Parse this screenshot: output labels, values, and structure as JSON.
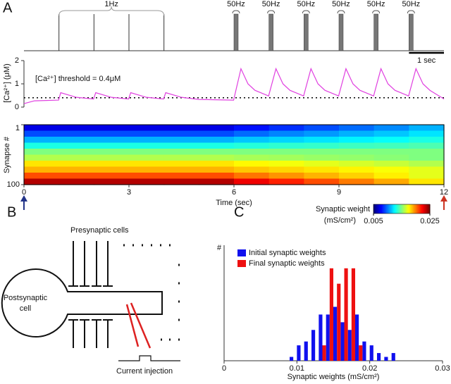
{
  "panel_labels": {
    "a": "A",
    "b": "B",
    "c": "C"
  },
  "chart_data": [
    {
      "type": "spikes",
      "xlim": [
        0,
        12
      ],
      "single_spikes": [
        1,
        2,
        3,
        4
      ],
      "single_label": "1Hz",
      "bursts": [
        6,
        7,
        8,
        9,
        10,
        11
      ],
      "burst_duration": 0.12,
      "burst_labels": [
        "50Hz",
        "50Hz",
        "50Hz",
        "50Hz",
        "50Hz",
        "50Hz"
      ],
      "scale_bar": {
        "length": 1,
        "label": "1 sec"
      }
    },
    {
      "type": "line",
      "ylabel": "[Ca²⁺] (μM)",
      "annotation": "[Ca²⁺] threshold = 0.4μM",
      "threshold": 0.4,
      "color": "#e040e0",
      "xlim": [
        0,
        12
      ],
      "ylim": [
        0,
        2
      ],
      "yticks": [
        0,
        1,
        2
      ],
      "x": [
        0,
        0.3,
        0.99,
        1.05,
        1.5,
        1.99,
        2.05,
        2.5,
        2.99,
        3.05,
        3.5,
        3.99,
        4.05,
        4.5,
        5,
        5.99,
        6.2,
        6.4,
        6.6,
        6.99,
        7.2,
        7.4,
        7.6,
        7.99,
        8.2,
        8.4,
        8.6,
        8.99,
        9.2,
        9.4,
        9.6,
        9.99,
        10.2,
        10.4,
        10.6,
        10.99,
        11.2,
        11.4,
        11.6,
        12
      ],
      "values": [
        0.15,
        0.27,
        0.3,
        0.62,
        0.42,
        0.35,
        0.62,
        0.42,
        0.35,
        0.62,
        0.42,
        0.35,
        0.62,
        0.42,
        0.33,
        0.3,
        1.65,
        1.0,
        0.72,
        0.48,
        1.65,
        1.0,
        0.72,
        0.48,
        1.65,
        1.0,
        0.72,
        0.48,
        1.65,
        1.0,
        0.72,
        0.48,
        1.65,
        1.0,
        0.72,
        0.48,
        1.65,
        1.0,
        0.72,
        0.35
      ]
    },
    {
      "type": "heatmap",
      "ylabel": "Synapse #",
      "xlabel": "Time (sec)",
      "xlim": [
        0,
        12
      ],
      "xticks": [
        0,
        3,
        6,
        9,
        12
      ],
      "ylim": [
        1,
        100
      ],
      "yticks": [
        1,
        100
      ],
      "values": [
        [
          0.007,
          0.007,
          0.007,
          0.007,
          0.007,
          0.007,
          0.0078,
          0.0084,
          0.009,
          0.0096,
          0.0102,
          0.011
        ],
        [
          0.009,
          0.009,
          0.009,
          0.009,
          0.009,
          0.009,
          0.0096,
          0.0101,
          0.0105,
          0.011,
          0.0114,
          0.012
        ],
        [
          0.011,
          0.011,
          0.011,
          0.011,
          0.011,
          0.011,
          0.0114,
          0.0117,
          0.012,
          0.0123,
          0.0126,
          0.013
        ],
        [
          0.013,
          0.013,
          0.013,
          0.013,
          0.013,
          0.013,
          0.0132,
          0.0134,
          0.0135,
          0.0137,
          0.0138,
          0.014
        ],
        [
          0.015,
          0.015,
          0.015,
          0.015,
          0.015,
          0.015,
          0.015,
          0.015,
          0.015,
          0.015,
          0.015,
          0.015
        ],
        [
          0.016,
          0.016,
          0.016,
          0.016,
          0.016,
          0.016,
          0.0158,
          0.0157,
          0.0155,
          0.0154,
          0.0152,
          0.015
        ],
        [
          0.018,
          0.018,
          0.018,
          0.018,
          0.018,
          0.018,
          0.0176,
          0.0173,
          0.017,
          0.0167,
          0.0164,
          0.016
        ],
        [
          0.019,
          0.019,
          0.019,
          0.019,
          0.019,
          0.019,
          0.0186,
          0.0183,
          0.018,
          0.0177,
          0.0174,
          0.017
        ],
        [
          0.021,
          0.021,
          0.021,
          0.021,
          0.021,
          0.021,
          0.0202,
          0.0196,
          0.019,
          0.0184,
          0.0178,
          0.017
        ],
        [
          0.024,
          0.024,
          0.024,
          0.024,
          0.024,
          0.024,
          0.0228,
          0.0219,
          0.021,
          0.0201,
          0.0192,
          0.018
        ]
      ],
      "colorbar": {
        "label": "Synaptic weight",
        "unit": "(mS/cm²)",
        "lim": [
          0.005,
          0.025
        ],
        "ticks": [
          0.005,
          0.025
        ]
      }
    },
    {
      "type": "histogram",
      "xlabel": "Synaptic weights (mS/cm²)",
      "ylabel": "#",
      "xlim": [
        0,
        0.03
      ],
      "xticks": [
        0,
        0.01,
        0.02,
        0.03
      ],
      "ylim": [
        0,
        30
      ],
      "bins": [
        0.009,
        0.01,
        0.011,
        0.012,
        0.013,
        0.014,
        0.015,
        0.016,
        0.017,
        0.018,
        0.019,
        0.02,
        0.021,
        0.022,
        0.023,
        0.024
      ],
      "series": [
        {
          "name": "Initial synaptic weights",
          "color": "#1010ee",
          "values": [
            1,
            4,
            5,
            8,
            12,
            12,
            14,
            10,
            8,
            12,
            5,
            4,
            2,
            1,
            2
          ]
        },
        {
          "name": "Final synaptic weights",
          "color": "#ee1010",
          "values": [
            0,
            0,
            0,
            0,
            4,
            24,
            20,
            24,
            24,
            4,
            0,
            0,
            0,
            0,
            0
          ]
        }
      ]
    }
  ],
  "diagram": {
    "presynaptic_label": "Presynaptic cells",
    "postsynaptic_label": [
      "Postsynaptic",
      "cell"
    ],
    "injection_label": "Current injection"
  }
}
